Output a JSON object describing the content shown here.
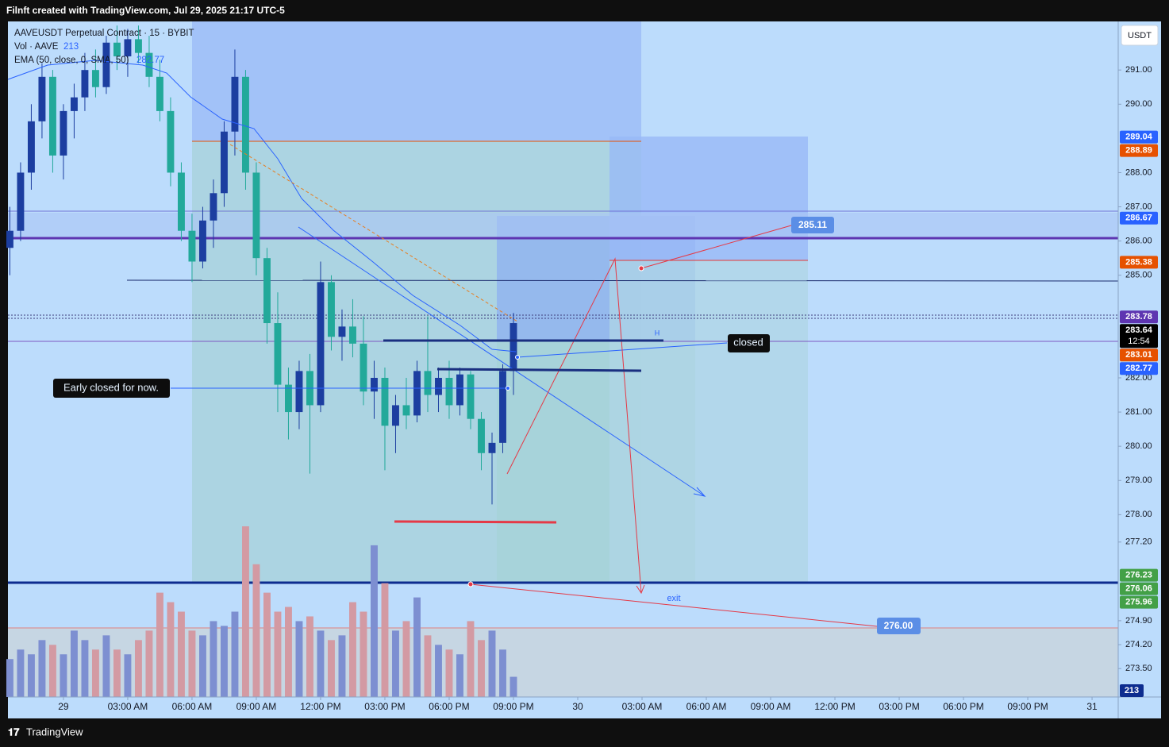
{
  "header": "Filnft created with TradingView.com, Jul 29, 2025 21:17 UTC-5",
  "footer": "TradingView",
  "ui": {
    "currency": "USDT"
  },
  "chart_data": {
    "type": "candlestick",
    "legend": {
      "symbol": "AAVEUSDT Perpetual Contract · 15 · BYBIT",
      "volume": "Vol · AAVE",
      "volume_value": 213,
      "ema": "EMA (50, close, 0, SMA, 50)",
      "ema_value": 282.77
    },
    "up_color": "#1c3ea0",
    "down_color": "#22a99a",
    "volume_up_color": "#7d8fd1",
    "volume_down_color": "#d39aa3",
    "xlim": [
      -2.59,
      49.22
    ],
    "ylim": [
      272.67,
      292.42
    ],
    "xticks": [
      {
        "value": 0,
        "label": "29"
      },
      {
        "value": 3,
        "label": "03:00 AM"
      },
      {
        "value": 6,
        "label": "06:00 AM"
      },
      {
        "value": 9,
        "label": "09:00 AM"
      },
      {
        "value": 12,
        "label": "12:00 PM"
      },
      {
        "value": 15,
        "label": "03:00 PM"
      },
      {
        "value": 18,
        "label": "06:00 PM"
      },
      {
        "value": 21,
        "label": "09:00 PM"
      },
      {
        "value": 24,
        "label": "30"
      },
      {
        "value": 27,
        "label": "03:00 AM"
      },
      {
        "value": 30,
        "label": "06:00 AM"
      },
      {
        "value": 33,
        "label": "09:00 AM"
      },
      {
        "value": 36,
        "label": "12:00 PM"
      },
      {
        "value": 39,
        "label": "03:00 PM"
      },
      {
        "value": 42,
        "label": "06:00 PM"
      },
      {
        "value": 45,
        "label": "09:00 PM"
      },
      {
        "value": 48,
        "label": "31"
      }
    ],
    "yticks": [
      {
        "value": 291,
        "label": "291.00"
      },
      {
        "value": 290,
        "label": "290.00"
      },
      {
        "value": 288,
        "label": "288.00"
      },
      {
        "value": 287,
        "label": "287.00"
      },
      {
        "value": 286,
        "label": "286.00"
      },
      {
        "value": 285,
        "label": "285.00"
      },
      {
        "value": 282,
        "label": "282.00"
      },
      {
        "value": 281,
        "label": "281.00"
      },
      {
        "value": 280,
        "label": "280.00"
      },
      {
        "value": 279,
        "label": "279.00"
      },
      {
        "value": 278,
        "label": "278.00"
      },
      {
        "value": 277.2,
        "label": "277.20"
      },
      {
        "value": 274.9,
        "label": "274.90"
      },
      {
        "value": 274.2,
        "label": "274.20"
      },
      {
        "value": 273.5,
        "label": "273.50"
      }
    ],
    "candles": {
      "x": [
        -2.5,
        -2,
        -1.5,
        -1,
        -0.5,
        0,
        0.5,
        1,
        1.5,
        2,
        2.5,
        3,
        3.5,
        4,
        4.5,
        5,
        5.5,
        6,
        6.5,
        7,
        7.5,
        8,
        8.5,
        9,
        9.5,
        10,
        10.5,
        11,
        11.5,
        12,
        12.5,
        13,
        13.5,
        14,
        14.5,
        15,
        15.5,
        16,
        16.5,
        17,
        17.5,
        18,
        18.5,
        19,
        19.5,
        20,
        20.5,
        21
      ],
      "open": [
        285.8,
        286.3,
        288,
        289.5,
        290.8,
        288.5,
        289.8,
        290.2,
        291,
        290.5,
        291.8,
        291.4,
        291.9,
        291.5,
        290.8,
        289.8,
        288,
        286.3,
        285.4,
        286.6,
        287.4,
        289.2,
        290.8,
        288,
        285.5,
        283.6,
        281.8,
        281,
        282.2,
        281.2,
        284.8,
        283.2,
        283.5,
        283,
        281.6,
        282,
        280.6,
        281.2,
        280.9,
        282.2,
        281.5,
        282,
        281.2,
        282.1,
        280.8,
        279.8,
        280.1,
        282.2
      ],
      "high": [
        287,
        288.3,
        290,
        291.2,
        291,
        290,
        290.6,
        291.5,
        291.6,
        292,
        292.3,
        292.2,
        292.3,
        292,
        291.3,
        290.2,
        288.3,
        286.8,
        287,
        287.8,
        289.5,
        291.6,
        291,
        288.3,
        285.8,
        284.5,
        282.3,
        282.5,
        282.7,
        285.4,
        285,
        284,
        284.3,
        283.8,
        282.5,
        282.3,
        281.5,
        282,
        282.5,
        283.8,
        282.3,
        282.5,
        282.3,
        282.2,
        281,
        280.4,
        282.4,
        283.9
      ],
      "low": [
        285,
        286,
        287.5,
        289,
        288,
        287.8,
        289,
        289.8,
        290.2,
        290.3,
        291,
        290.8,
        291.2,
        290.5,
        289.5,
        287.6,
        286,
        284.8,
        285.2,
        285.8,
        287,
        288.5,
        287.5,
        285,
        283,
        281,
        280.2,
        280.5,
        279.2,
        281,
        282.8,
        282.5,
        282.6,
        281.2,
        280.8,
        279.3,
        279.8,
        280.5,
        280.7,
        281,
        281,
        280.8,
        280.9,
        280.5,
        279.3,
        278.3,
        279.8,
        281.5
      ],
      "close": [
        286.3,
        288,
        289.5,
        290.8,
        288.5,
        289.8,
        290.2,
        291,
        290.5,
        291.8,
        291.4,
        291.9,
        291.5,
        290.8,
        289.8,
        288,
        286.3,
        285.4,
        286.6,
        287.4,
        289.2,
        290.8,
        288,
        285.5,
        283.6,
        281.8,
        281,
        282.2,
        281.2,
        284.8,
        283.2,
        283.5,
        283,
        281.6,
        282,
        280.6,
        281.2,
        280.9,
        282.2,
        281.5,
        282,
        281.2,
        282.1,
        280.8,
        279.8,
        280.1,
        282.2,
        283.6
      ],
      "volume": [
        400,
        500,
        450,
        600,
        550,
        450,
        700,
        600,
        500,
        650,
        500,
        450,
        600,
        700,
        1100,
        1000,
        900,
        700,
        650,
        800,
        750,
        900,
        1800,
        1400,
        1100,
        900,
        950,
        800,
        850,
        700,
        600,
        650,
        1000,
        900,
        1600,
        1200,
        700,
        800,
        1050,
        650,
        550,
        500,
        450,
        800,
        600,
        700,
        500,
        213
      ]
    },
    "price_labels": [
      {
        "value": 289.04,
        "label": "289.04",
        "color": "#2962ff"
      },
      {
        "value": 288.89,
        "label": "288.89",
        "color": "#e65100"
      },
      {
        "value": 286.67,
        "label": "286.67",
        "color": "#2962ff"
      },
      {
        "value": 285.38,
        "label": "285.38",
        "color": "#e65100"
      },
      {
        "value": 283.78,
        "label": "283.78",
        "color": "#5e35b1"
      },
      {
        "value": 283.64,
        "label": "283.64",
        "color": "#000000",
        "countdown": "12:54"
      },
      {
        "value": 283.01,
        "label": "283.01",
        "color": "#e65100"
      },
      {
        "value": 282.77,
        "label": "282.77",
        "color": "#2962ff"
      },
      {
        "value": 276.23,
        "label": "276.23",
        "color": "#43a047"
      },
      {
        "value": 276.06,
        "label": "276.06",
        "color": "#43a047"
      },
      {
        "value": 275.96,
        "label": "275.96",
        "color": "#43a047"
      }
    ],
    "annotations": {
      "early": "Early closed for now.",
      "closed": "closed",
      "high": "H",
      "exit": "exit",
      "target": {
        "value": 285.11,
        "label": "285.11"
      },
      "stop": {
        "value": 276,
        "label": "276.00"
      }
    }
  }
}
